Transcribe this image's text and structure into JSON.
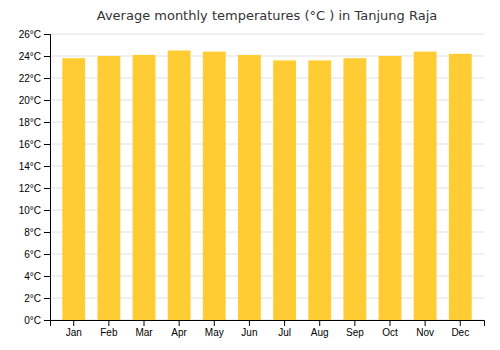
{
  "chart_data": {
    "type": "bar",
    "title": "Average monthly temperatures (°C ) in Tanjung Raja",
    "categories": [
      "Jan",
      "Feb",
      "Mar",
      "Apr",
      "May",
      "Jun",
      "Jul",
      "Aug",
      "Sep",
      "Oct",
      "Nov",
      "Dec"
    ],
    "values": [
      23.8,
      24.0,
      24.1,
      24.5,
      24.4,
      24.1,
      23.6,
      23.6,
      23.8,
      24.0,
      24.4,
      24.2
    ],
    "color": "#FFCC33",
    "ylim": [
      0,
      26
    ],
    "yticks": [
      {
        "value": 0,
        "label": "0°C"
      },
      {
        "value": 2,
        "label": "2°C"
      },
      {
        "value": 4,
        "label": "4°C"
      },
      {
        "value": 6,
        "label": "6°C"
      },
      {
        "value": 8,
        "label": "8°C"
      },
      {
        "value": 10,
        "label": "10°C"
      },
      {
        "value": 12,
        "label": "12°C"
      },
      {
        "value": 14,
        "label": "14°C"
      },
      {
        "value": 16,
        "label": "16°C"
      },
      {
        "value": 18,
        "label": "18°C"
      },
      {
        "value": 20,
        "label": "20°C"
      },
      {
        "value": 22,
        "label": "22°C"
      },
      {
        "value": 24,
        "label": "24°C"
      },
      {
        "value": 26,
        "label": "26°C"
      }
    ],
    "grid": true
  }
}
